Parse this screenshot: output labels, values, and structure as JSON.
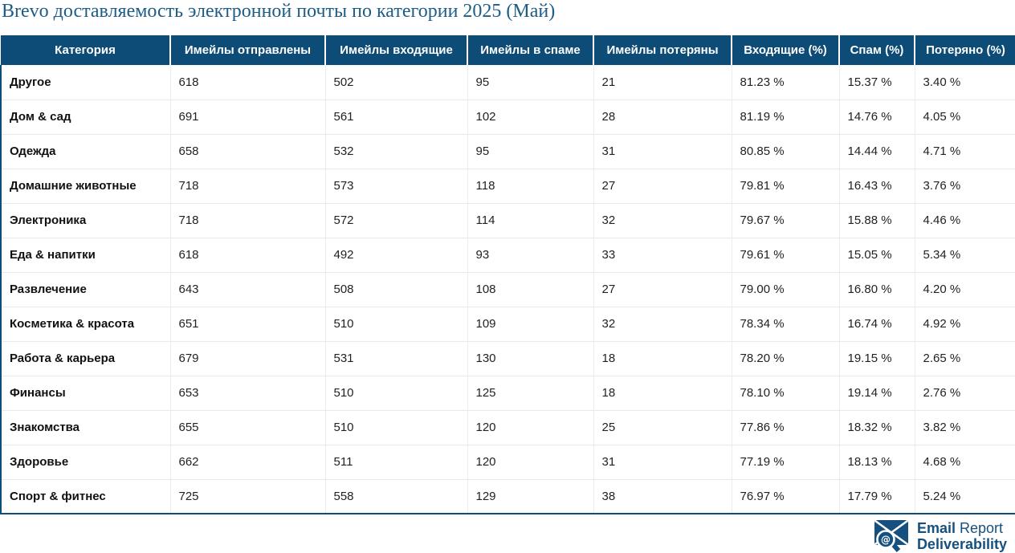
{
  "title": "Brevo доставляемость электронной почты по категории 2025 (Май)",
  "chart_data": {
    "type": "table",
    "title": "Brevo доставляемость электронной почты по категории 2025 (Май)",
    "columns": [
      "Категория",
      "Имейлы отправлены",
      "Имейлы входящие",
      "Имейлы в спаме",
      "Имейлы потеряны",
      "Входящие (%)",
      "Спам (%)",
      "Потеряно (%)"
    ],
    "rows": [
      [
        "Другое",
        "618",
        "502",
        "95",
        "21",
        "81.23 %",
        "15.37 %",
        "3.40 %"
      ],
      [
        "Дом & сад",
        "691",
        "561",
        "102",
        "28",
        "81.19 %",
        "14.76 %",
        "4.05 %"
      ],
      [
        "Одежда",
        "658",
        "532",
        "95",
        "31",
        "80.85 %",
        "14.44 %",
        "4.71 %"
      ],
      [
        "Домашние животные",
        "718",
        "573",
        "118",
        "27",
        "79.81 %",
        "16.43 %",
        "3.76 %"
      ],
      [
        "Электроника",
        "718",
        "572",
        "114",
        "32",
        "79.67 %",
        "15.88 %",
        "4.46 %"
      ],
      [
        "Еда & напитки",
        "618",
        "492",
        "93",
        "33",
        "79.61 %",
        "15.05 %",
        "5.34 %"
      ],
      [
        "Развлечение",
        "643",
        "508",
        "108",
        "27",
        "79.00 %",
        "16.80 %",
        "4.20 %"
      ],
      [
        "Косметика & красота",
        "651",
        "510",
        "109",
        "32",
        "78.34 %",
        "16.74 %",
        "4.92 %"
      ],
      [
        "Работа & карьера",
        "679",
        "531",
        "130",
        "18",
        "78.20 %",
        "19.15 %",
        "2.65 %"
      ],
      [
        "Финансы",
        "653",
        "510",
        "125",
        "18",
        "78.10 %",
        "19.14 %",
        "2.76 %"
      ],
      [
        "Знакомства",
        "655",
        "510",
        "120",
        "25",
        "77.86 %",
        "18.32 %",
        "3.82 %"
      ],
      [
        "Здоровье",
        "662",
        "511",
        "120",
        "31",
        "77.19 %",
        "18.13 %",
        "4.68 %"
      ],
      [
        "Спорт & фитнес",
        "725",
        "558",
        "129",
        "38",
        "76.97 %",
        "17.79 %",
        "5.24 %"
      ]
    ]
  },
  "footer": {
    "brand_word1": "Email",
    "brand_word2": "Report",
    "brand_line2": "Deliverability",
    "icon": "envelope-magnifier-at-icon"
  },
  "colors": {
    "header_bg": "#0d4c77",
    "title_text": "#1d5c87",
    "brand_blue": "#15507f",
    "row_divider": "#e9e9e9",
    "cell_separator": "#ececec",
    "body_text": "#222222"
  }
}
